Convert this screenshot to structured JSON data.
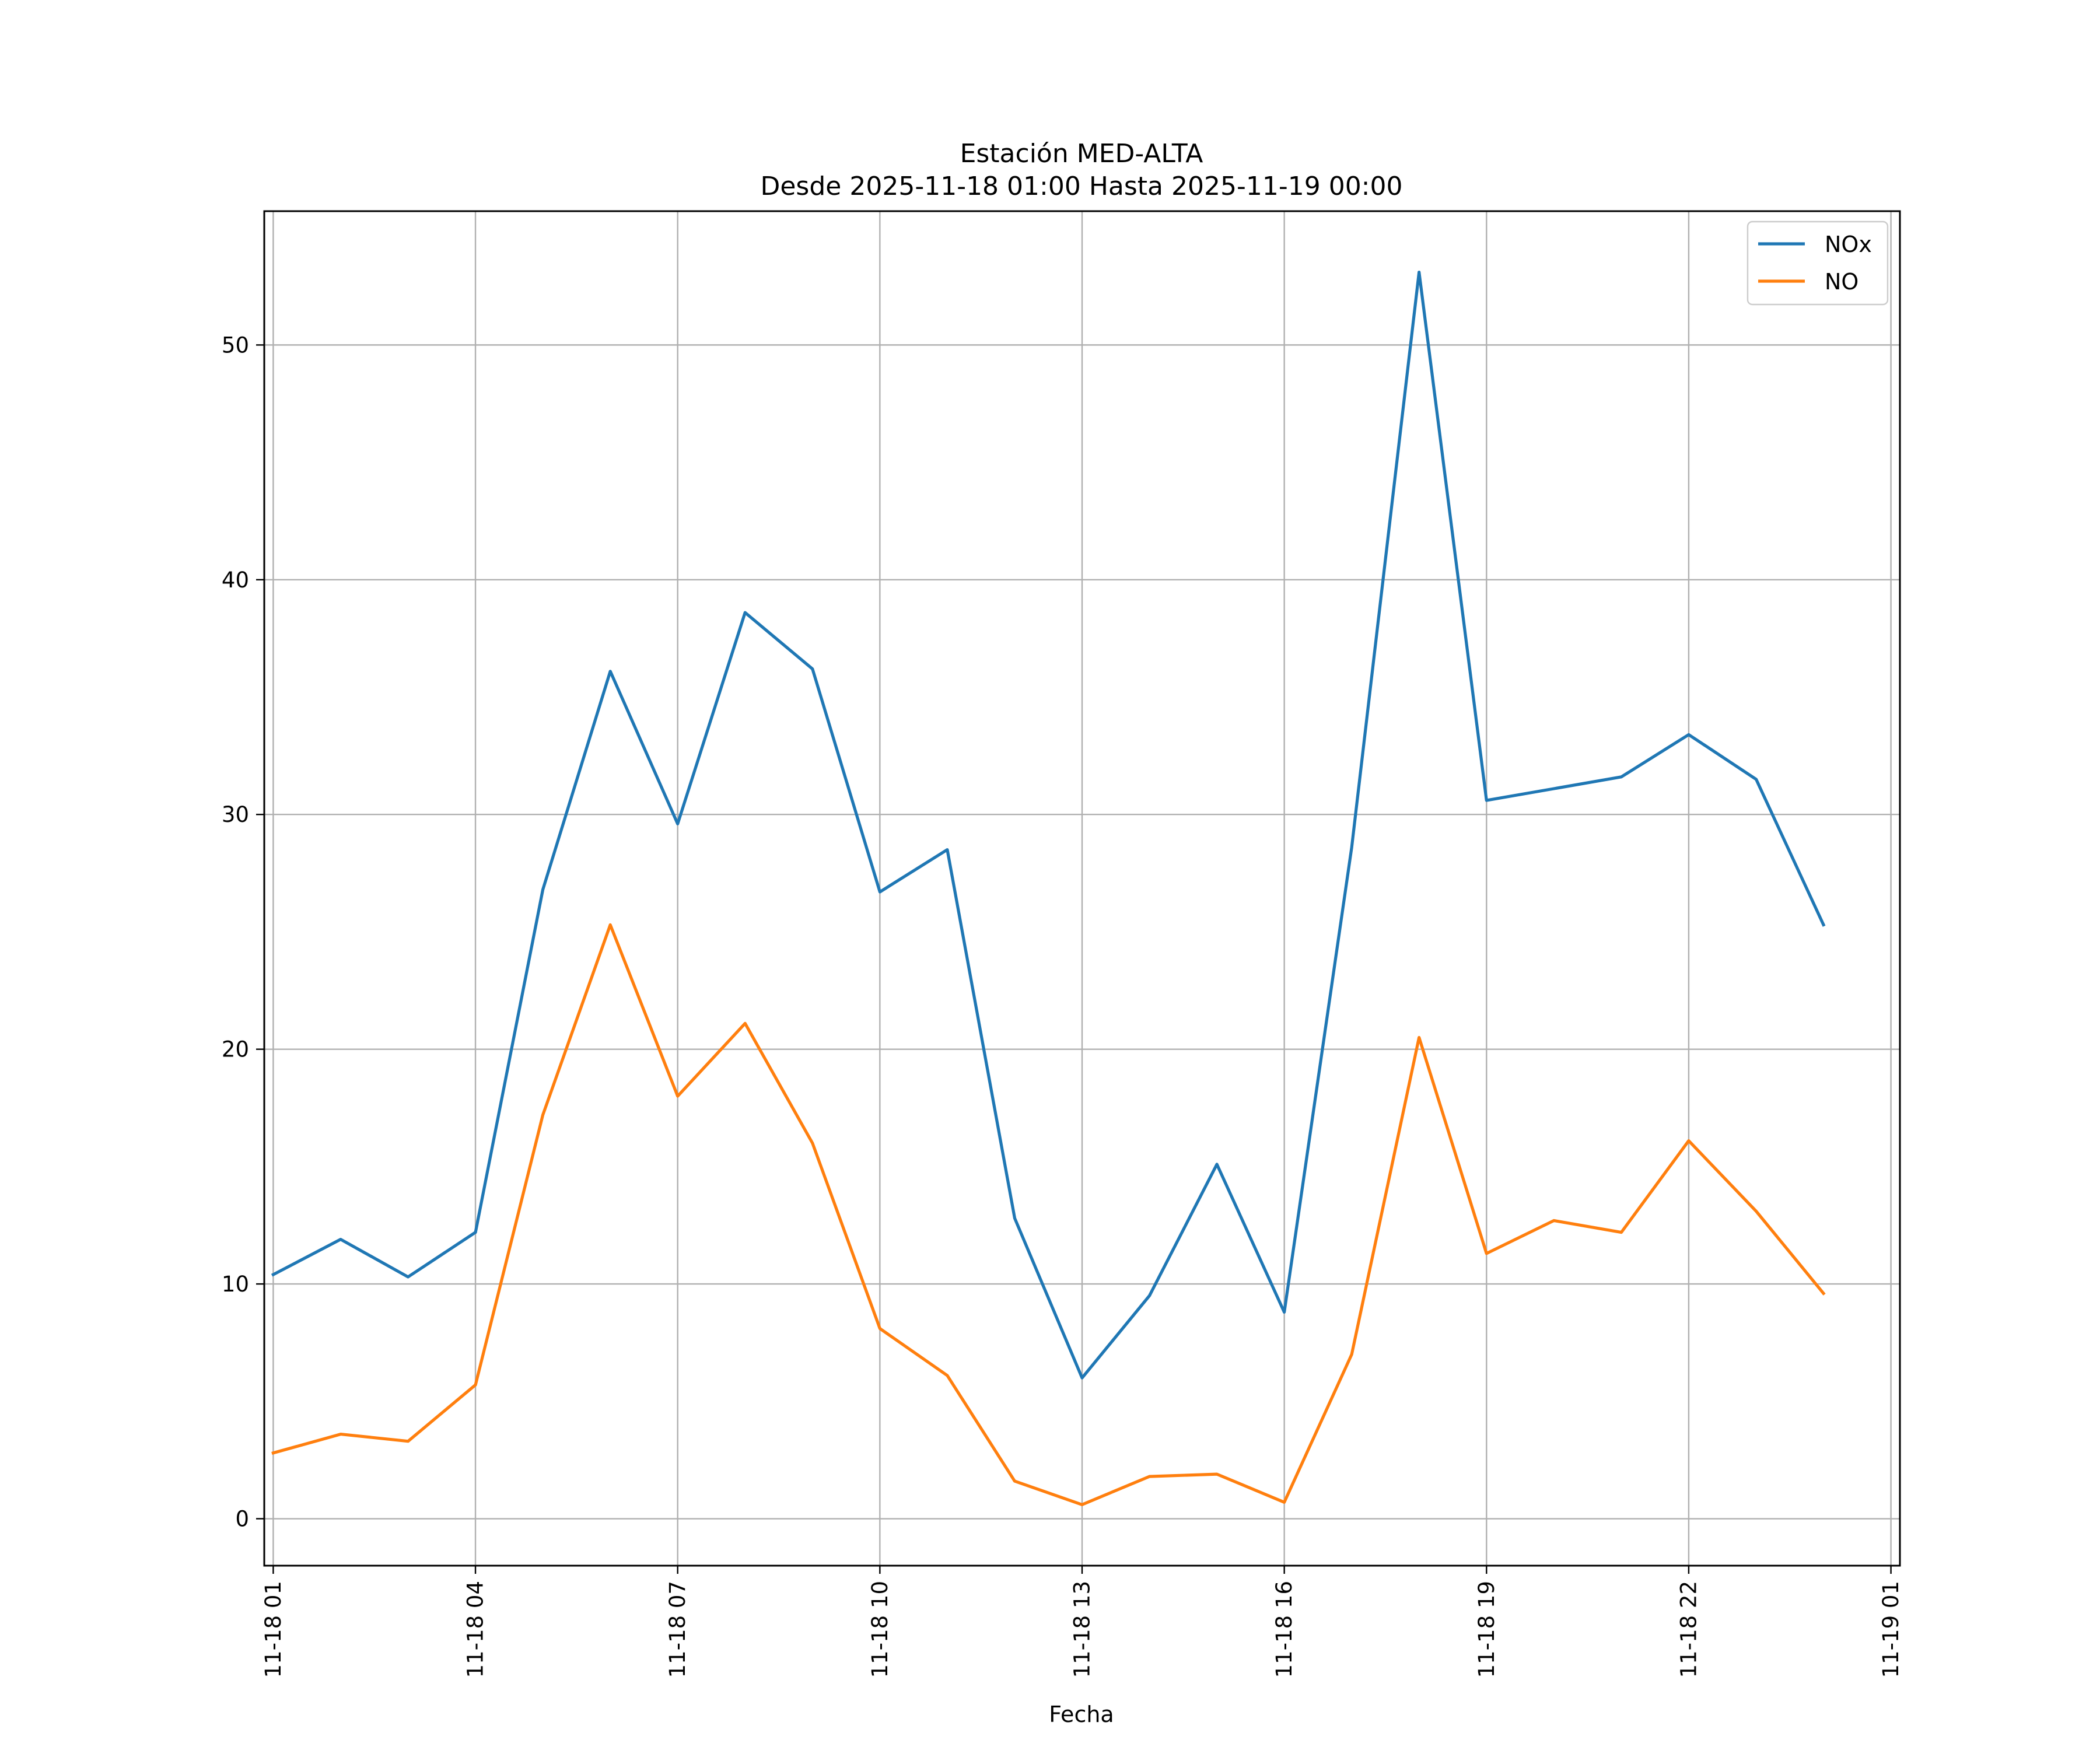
{
  "chart_data": {
    "type": "line",
    "title": "Estación MED-ALTA",
    "subtitle": "Desde 2025-11-18 01:00 Hasta 2025-11-19 00:00",
    "xlabel": "Fecha",
    "ylabel": "",
    "x": [
      "2025-11-18 01:00",
      "2025-11-18 02:00",
      "2025-11-18 03:00",
      "2025-11-18 04:00",
      "2025-11-18 05:00",
      "2025-11-18 06:00",
      "2025-11-18 07:00",
      "2025-11-18 08:00",
      "2025-11-18 09:00",
      "2025-11-18 10:00",
      "2025-11-18 11:00",
      "2025-11-18 12:00",
      "2025-11-18 13:00",
      "2025-11-18 14:00",
      "2025-11-18 15:00",
      "2025-11-18 16:00",
      "2025-11-18 17:00",
      "2025-11-18 18:00",
      "2025-11-18 19:00",
      "2025-11-18 20:00",
      "2025-11-18 21:00",
      "2025-11-18 22:00",
      "2025-11-18 23:00",
      "2025-11-19 00:00"
    ],
    "x_range": [
      "2025-11-18 00:52",
      "2025-11-19 01:08"
    ],
    "series": [
      {
        "name": "NOx",
        "color": "#1f77b4",
        "values": [
          10.4,
          11.9,
          10.3,
          12.2,
          26.8,
          36.1,
          29.6,
          38.6,
          36.2,
          26.7,
          28.5,
          12.8,
          6.0,
          9.5,
          15.1,
          8.8,
          28.6,
          53.1,
          30.6,
          31.1,
          31.6,
          33.4,
          31.5,
          25.3
        ]
      },
      {
        "name": "NO",
        "color": "#ff7f0e",
        "values": [
          2.8,
          3.6,
          3.3,
          5.7,
          17.2,
          25.3,
          18.0,
          21.1,
          16.0,
          8.1,
          6.1,
          1.6,
          0.6,
          1.8,
          1.9,
          0.7,
          7.0,
          20.5,
          11.3,
          12.7,
          12.2,
          16.1,
          13.1,
          9.6
        ]
      }
    ],
    "ylim": [
      -2.0,
      55.7
    ],
    "yticks": [
      0,
      10,
      20,
      30,
      40,
      50
    ],
    "xticks": [
      "2025-11-18 01:00",
      "2025-11-18 04:00",
      "2025-11-18 07:00",
      "2025-11-18 10:00",
      "2025-11-18 13:00",
      "2025-11-18 16:00",
      "2025-11-18 19:00",
      "2025-11-18 22:00",
      "2025-11-19 01:00"
    ],
    "xtick_labels": [
      "11-18 01",
      "11-18 04",
      "11-18 07",
      "11-18 10",
      "11-18 13",
      "11-18 16",
      "11-18 19",
      "11-18 22",
      "11-19 01"
    ],
    "grid": true,
    "legend_position": "upper-right"
  }
}
